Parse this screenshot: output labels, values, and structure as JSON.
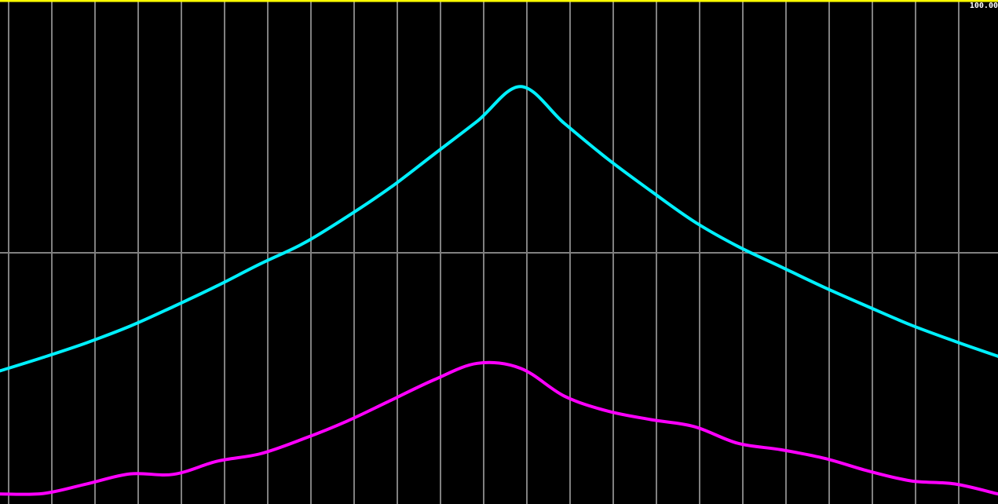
{
  "chart_data": {
    "type": "line",
    "title": "",
    "xlabel": "",
    "ylabel": "",
    "ylim": [
      0,
      100
    ],
    "ymax_label": "100.00",
    "grid": true,
    "x": [
      0,
      1,
      2,
      3,
      4,
      5,
      6,
      7,
      8,
      9,
      10,
      11,
      12,
      13,
      14,
      15,
      16,
      17,
      18,
      19,
      20,
      21,
      22,
      23
    ],
    "series": [
      {
        "color": "#00f0ff",
        "values": [
          26.5,
          29.2,
          32.1,
          35.4,
          39.3,
          43.4,
          47.8,
          51.9,
          57.2,
          63.0,
          69.6,
          76.2,
          83.1,
          75.8,
          68.7,
          62.3,
          56.2,
          51.3,
          47.2,
          43.1,
          39.3,
          35.6,
          32.4,
          29.4
        ]
      },
      {
        "color": "#ff00ff",
        "values": [
          2.0,
          2.1,
          4.0,
          6.0,
          5.9,
          8.5,
          10.0,
          13.0,
          16.5,
          20.6,
          24.7,
          28.0,
          27.0,
          21.5,
          18.5,
          16.8,
          15.4,
          12.1,
          10.8,
          9.1,
          6.6,
          4.6,
          4.0,
          2.0
        ]
      }
    ]
  },
  "colors": {
    "background": "#000000",
    "grid": "#808080",
    "top_border": "#ffff00",
    "label": "#ffffff"
  }
}
